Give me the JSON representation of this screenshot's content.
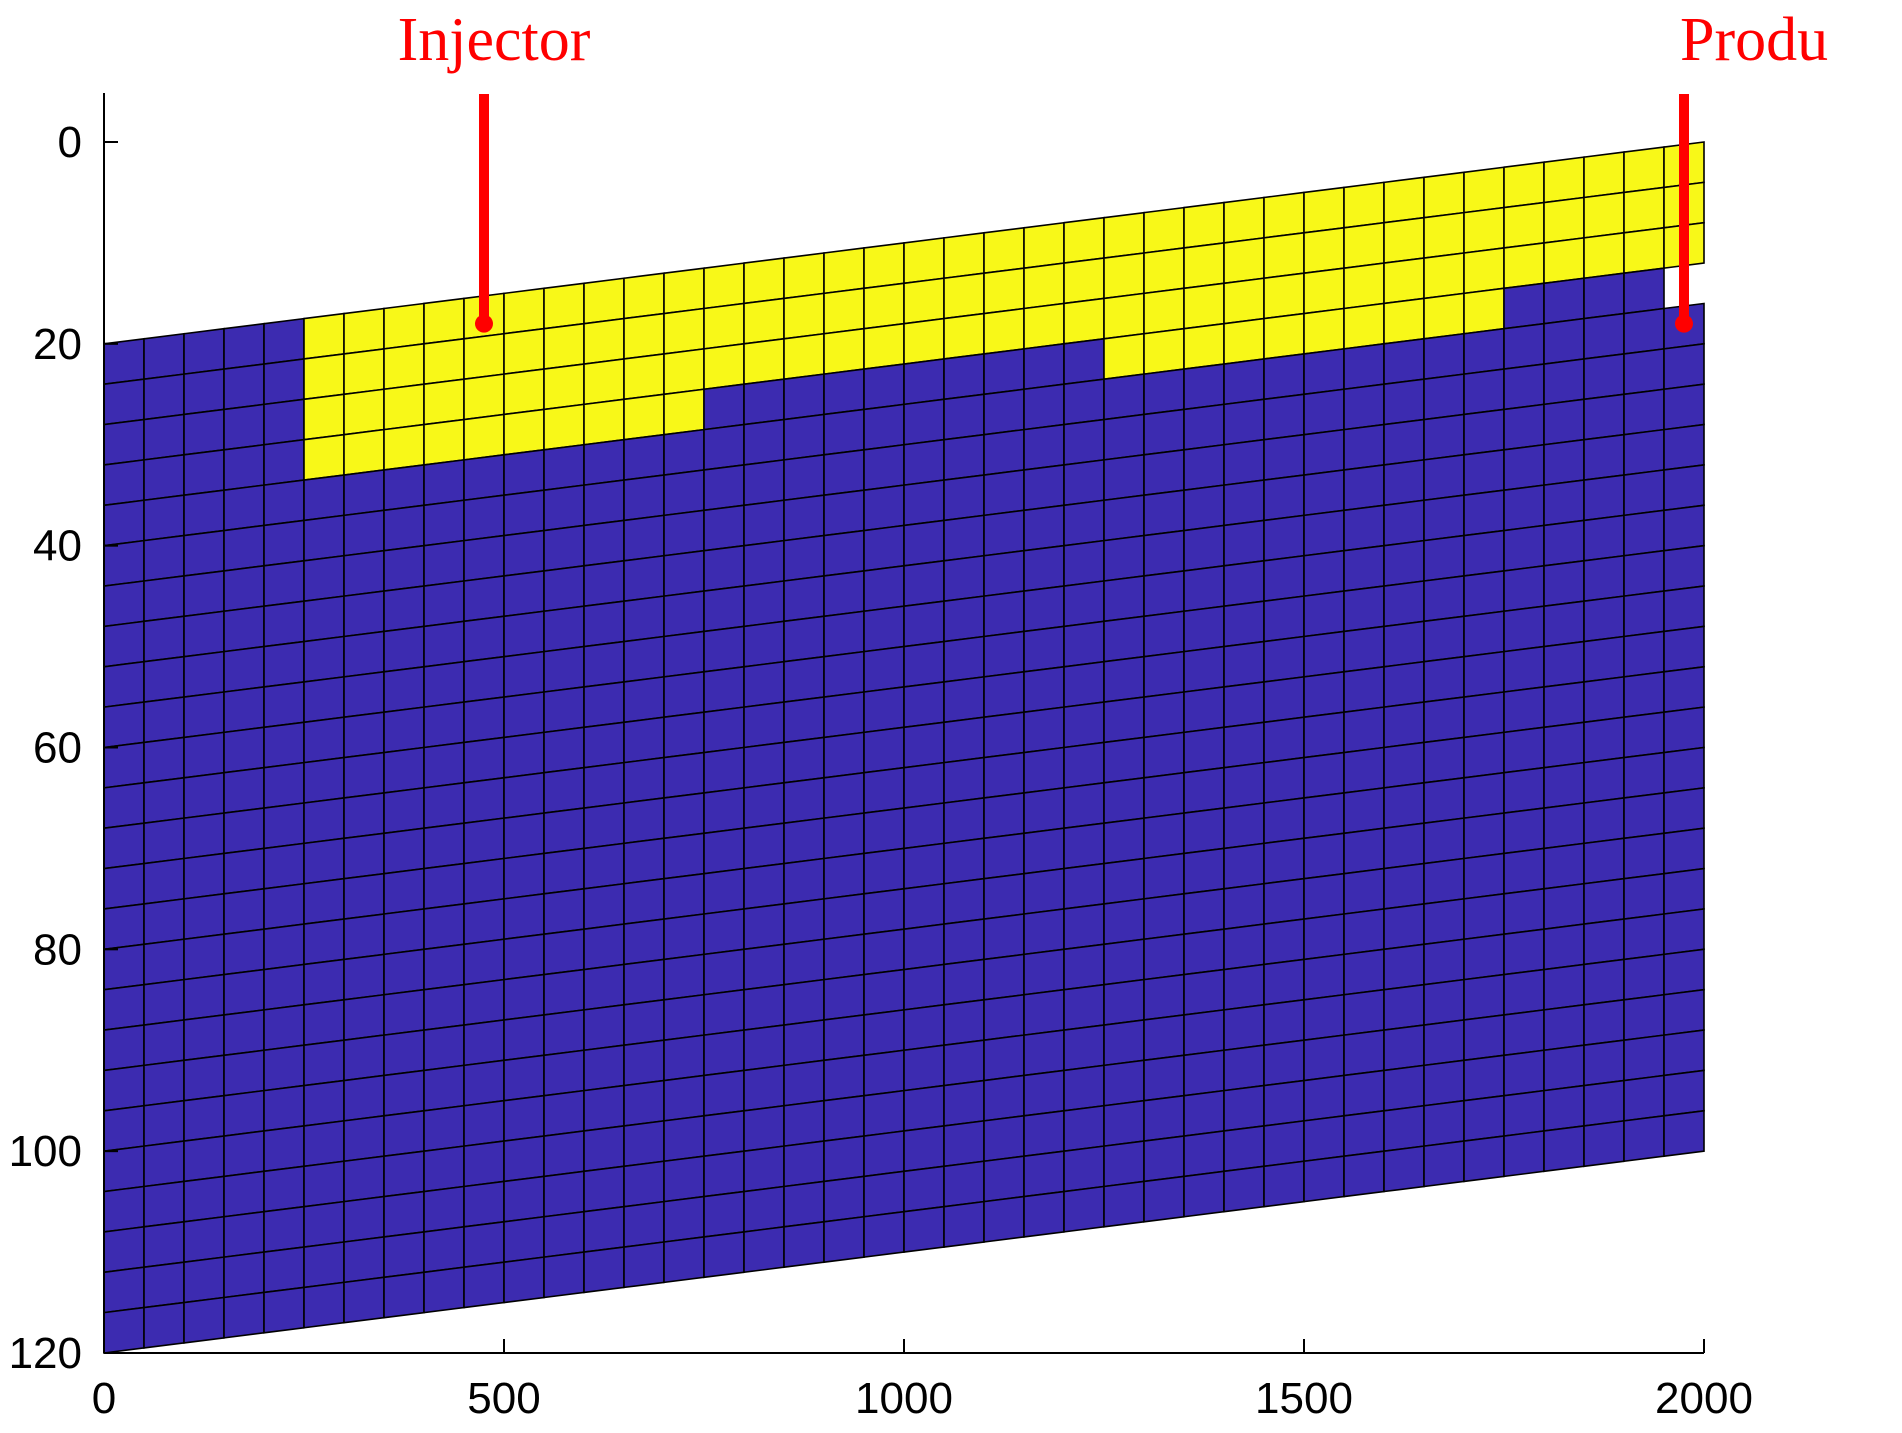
{
  "chart_data": {
    "type": "heatmap",
    "title": "",
    "xlabel": "",
    "ylabel": "",
    "xlim": [
      0,
      2000
    ],
    "ylim": [
      120,
      0
    ],
    "y_axis_reversed": true,
    "x_ticks": [
      0,
      500,
      1000,
      1500,
      2000
    ],
    "y_ticks": [
      0,
      20,
      40,
      60,
      80,
      100,
      120
    ],
    "grid": {
      "columns": 40,
      "layers": 25,
      "cell_width": 50,
      "top_depth_left": 20,
      "top_depth_right": 0,
      "bottom_depth_left": 120,
      "bottom_depth_right": 100
    },
    "colors": {
      "high": "#f8f818",
      "low": "#3c2bb0",
      "well": "#ff0000",
      "grid_line": "#000000",
      "well_cell": "#ffffff"
    },
    "high_region": {
      "top_layers": 4,
      "column_ranges": [
        [
          0,
          4
        ],
        [
          5,
          14
        ],
        [
          15,
          24
        ],
        [
          25,
          34
        ],
        [
          35,
          39
        ]
      ],
      "high_cells_per_range": [
        {
          "from": 5,
          "to": 14,
          "layers": 4
        },
        {
          "from": 15,
          "to": 24,
          "layers": 3
        },
        {
          "from": 25,
          "to": 34,
          "layers": 4
        },
        {
          "from": 35,
          "to": 39,
          "layers": 3
        }
      ]
    },
    "wells": [
      {
        "name": "Injector",
        "x": 475,
        "column": 9,
        "bottom_depth": 18
      },
      {
        "name": "Produ",
        "x": 1975,
        "column": 39,
        "bottom_depth": 18
      }
    ]
  }
}
